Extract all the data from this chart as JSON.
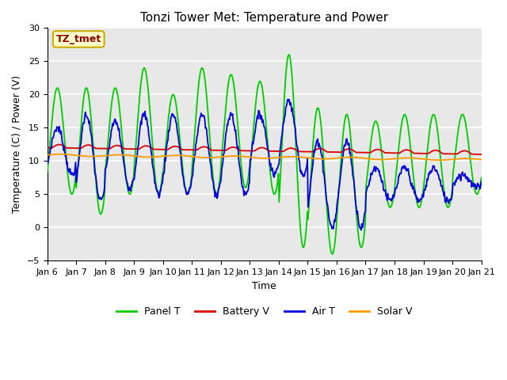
{
  "title": "Tonzi Tower Met: Temperature and Power",
  "xlabel": "Time",
  "ylabel": "Temperature (C) / Power (V)",
  "ylim": [
    -5,
    30
  ],
  "yticks": [
    -5,
    0,
    5,
    10,
    15,
    20,
    25,
    30
  ],
  "xtick_labels": [
    "Jan 6",
    "Jan 7",
    "Jan 8",
    "Jan 9",
    "Jan 10",
    "Jan 11",
    "Jan 12",
    "Jan 13",
    "Jan 14",
    "Jan 15",
    "Jan 16",
    "Jan 17",
    "Jan 18",
    "Jan 19",
    "Jan 20",
    "Jan 21"
  ],
  "annotation_text": "TZ_tmet",
  "annotation_color": "#8B0000",
  "annotation_bg": "#FFFFCC",
  "annotation_edge": "#CCAA00",
  "legend_entries": [
    "Panel T",
    "Battery V",
    "Air T",
    "Solar V"
  ],
  "legend_colors": [
    "#00CC00",
    "#DD0000",
    "#0000DD",
    "#FF9900"
  ],
  "bg_color": "#E8E8E8",
  "grid_color": "#FFFFFF",
  "panel_t_color": "#00CC00",
  "battery_v_color": "#DD0000",
  "air_t_color": "#0000DD",
  "solar_v_color": "#FF9900",
  "title_fontsize": 11,
  "label_fontsize": 9,
  "tick_fontsize": 8
}
